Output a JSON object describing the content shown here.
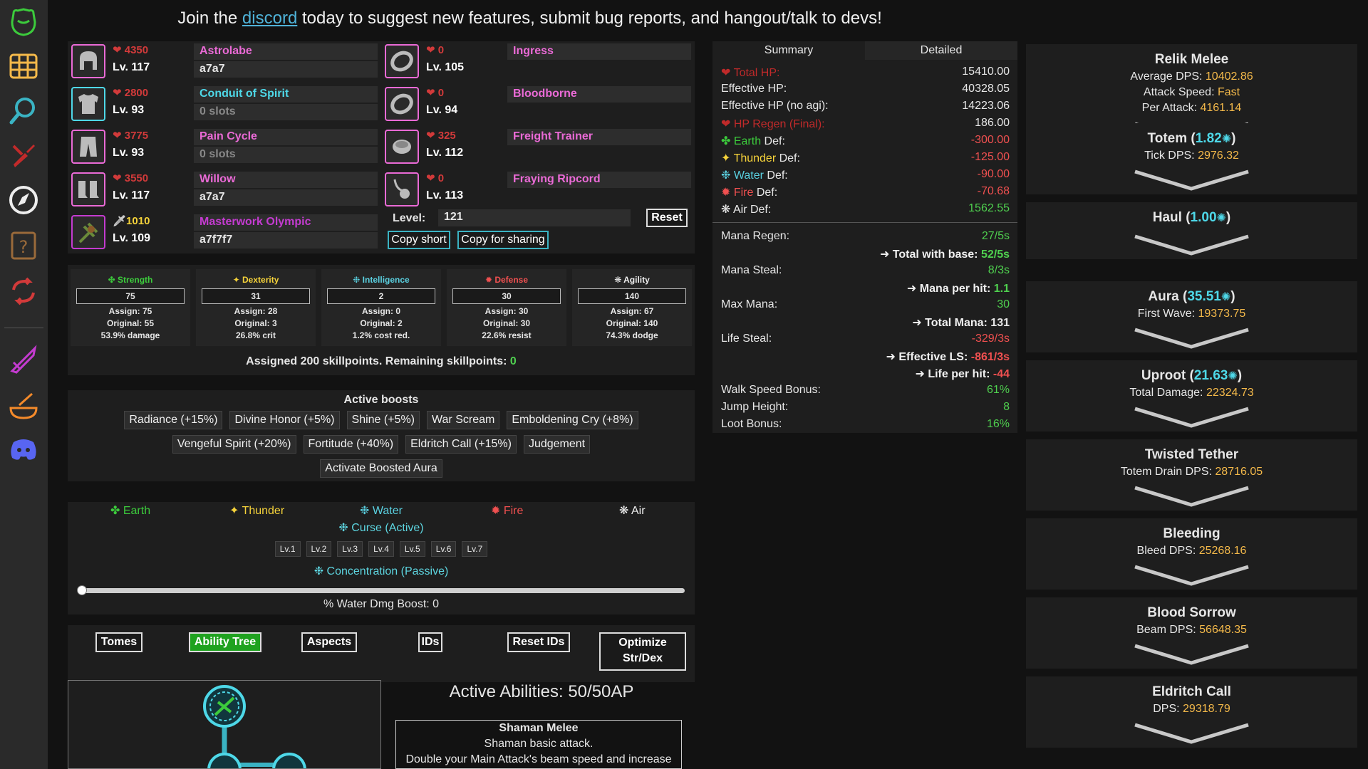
{
  "banner": {
    "before": "Join the ",
    "link": "discord",
    "after": " today to suggest new features, submit bug reports, and hangout/talk to devs!"
  },
  "sidebar": [
    "helmet-icon",
    "grid-icon",
    "search-icon",
    "wrench-icon",
    "compass-icon",
    "help-icon",
    "refresh-icon",
    "sword-icon",
    "cooking-icon",
    "discord-icon"
  ],
  "equipment": [
    {
      "hp": "❤ 4350",
      "level": "Lv. 117",
      "name": "Astrolabe",
      "sub": "a7a7",
      "sub_dim": false,
      "name_color": "#ea6ad6",
      "hp_color": "#d23a3a"
    },
    {
      "hp": "❤ 2800",
      "level": "Lv. 93",
      "name": "Conduit of Spirit",
      "sub": "0 slots",
      "sub_dim": true,
      "name_color": "#4ed8e8",
      "hp_color": "#d23a3a"
    },
    {
      "hp": "❤ 3775",
      "level": "Lv. 93",
      "name": "Pain Cycle",
      "sub": "0 slots",
      "sub_dim": true,
      "name_color": "#ea6ad6",
      "hp_color": "#d23a3a"
    },
    {
      "hp": "❤ 3550",
      "level": "Lv. 117",
      "name": "Willow",
      "sub": "a7a7",
      "sub_dim": false,
      "name_color": "#ea6ad6",
      "hp_color": "#d23a3a"
    },
    {
      "hp": "1010",
      "level": "Lv. 109",
      "name": "Masterwork Olympic",
      "sub": "a7f7f7",
      "sub_dim": false,
      "name_color": "#c43bd0",
      "hp_color": "#f4d23a"
    }
  ],
  "accessories": [
    {
      "hp": "❤ 0",
      "level": "Lv. 105",
      "name": "Ingress",
      "name_color": "#ea6ad6"
    },
    {
      "hp": "❤ 0",
      "level": "Lv. 94",
      "name": "Bloodborne",
      "name_color": "#ea6ad6"
    },
    {
      "hp": "❤ 325",
      "level": "Lv. 112",
      "name": "Freight Trainer",
      "name_color": "#ea6ad6"
    },
    {
      "hp": "❤ 0",
      "level": "Lv. 113",
      "name": "Fraying Ripcord",
      "name_color": "#ea6ad6"
    }
  ],
  "level": {
    "label": "Level:",
    "value": "121",
    "reset": "Reset",
    "copy_short": "Copy short",
    "copy_sharing": "Copy for sharing"
  },
  "skills": [
    {
      "name": "✤ Strength",
      "color": "#3ccb3c",
      "value": "75",
      "assign": "Assign: 75",
      "original": "Original: 55",
      "effect": "53.9% damage"
    },
    {
      "name": "✦ Dexterity",
      "color": "#f5d23a",
      "value": "31",
      "assign": "Assign: 28",
      "original": "Original: 3",
      "effect": "26.8% crit"
    },
    {
      "name": "❉ Intelligence",
      "color": "#5ad0e0",
      "value": "2",
      "assign": "Assign: 0",
      "original": "Original: 2",
      "effect": "1.2% cost red."
    },
    {
      "name": "✹ Defense",
      "color": "#f05050",
      "value": "30",
      "assign": "Assign: 30",
      "original": "Original: 30",
      "effect": "22.6% resist"
    },
    {
      "name": "❋ Agility",
      "color": "#eeeeee",
      "value": "140",
      "assign": "Assign: 67",
      "original": "Original: 140",
      "effect": "74.3% dodge"
    }
  ],
  "skill_summary": {
    "text": "Assigned 200 skillpoints. Remaining skillpoints: ",
    "remaining": "0"
  },
  "boosts": {
    "title": "Active boosts",
    "row1": [
      "Radiance (+15%)",
      "Divine Honor (+5%)",
      "Shine (+5%)",
      "War Scream",
      "Emboldening Cry (+8%)"
    ],
    "row2": [
      "Vengeful Spirit (+20%)",
      "Fortitude (+40%)",
      "Eldritch Call (+15%)",
      "Judgement"
    ],
    "row3": [
      "Activate Boosted Aura"
    ]
  },
  "elements": [
    {
      "label": "✤ Earth",
      "color": "#3ccb3c"
    },
    {
      "label": "✦ Thunder",
      "color": "#f5d23a"
    },
    {
      "label": "❉ Water",
      "color": "#5ad0e0"
    },
    {
      "label": "✹ Fire",
      "color": "#f05050"
    },
    {
      "label": "❋ Air",
      "color": "#eeeeee"
    }
  ],
  "abilities": {
    "curse": "❉ Curse (Active)",
    "levels": [
      "Lv.1",
      "Lv.2",
      "Lv.3",
      "Lv.4",
      "Lv.5",
      "Lv.6",
      "Lv.7"
    ],
    "concentration": "❉ Concentration (Passive)",
    "slider_label": "% Water Dmg Boost: 0",
    "slider_fraction": 0
  },
  "tabs": [
    "Tomes",
    "Ability Tree",
    "Aspects",
    "IDs",
    "Reset IDs",
    "Optimize Str/Dex"
  ],
  "active_abilities": {
    "title": "Active Abilities:  50/50AP",
    "name": "Shaman Melee",
    "line1": "Shaman basic attack.",
    "line2": "Double your Main Attack's beam speed and increase"
  },
  "stats": {
    "tabs": [
      "Summary",
      "Detailed"
    ],
    "rows1": [
      {
        "label": "❤ Total HP:",
        "value": "15410.00",
        "label_color": "#c02a2a",
        "value_color": "#e6e6e6"
      },
      {
        "label": "Effective HP:",
        "value": "40328.05",
        "label_color": "#e6e6e6",
        "value_color": "#e6e6e6"
      },
      {
        "label": "Effective HP (no agi):",
        "value": "14223.06",
        "label_color": "#e6e6e6",
        "value_color": "#e6e6e6"
      },
      {
        "label": "❤ HP Regen (Final):",
        "value": "186.00",
        "label_color": "#c02a2a",
        "value_color": "#e6e6e6"
      },
      {
        "label_prefix": "✤ Earth",
        "label_suffix": " Def:",
        "prefix_color": "#3ccb3c",
        "value": "-300.00",
        "value_color": "#f05050"
      },
      {
        "label_prefix": "✦ Thunder",
        "label_suffix": " Def:",
        "prefix_color": "#f5d23a",
        "value": "-125.00",
        "value_color": "#f05050"
      },
      {
        "label_prefix": "❉ Water",
        "label_suffix": " Def:",
        "prefix_color": "#5ad0e0",
        "value": "-90.00",
        "value_color": "#f05050"
      },
      {
        "label_prefix": "✹ Fire",
        "label_suffix": " Def:",
        "prefix_color": "#f05050",
        "value": "-70.68",
        "value_color": "#f05050"
      },
      {
        "label_prefix": "❋ Air",
        "label_suffix": " Def:",
        "prefix_color": "#eeeeee",
        "value": "1562.55",
        "value_color": "#4fd04f"
      }
    ],
    "rows2": [
      {
        "label": "Mana Regen:",
        "value": "27/5s",
        "value_color": "#4fd04f"
      },
      {
        "label": "",
        "value_prefix": "➜ Total with base: ",
        "value": "52/5s",
        "value_color": "#4fd04f",
        "bold": true
      },
      {
        "label": "Mana Steal:",
        "value": "8/3s",
        "value_color": "#4fd04f"
      },
      {
        "label": "",
        "value_prefix": "➜ Mana per hit: ",
        "value": "1.1",
        "value_color": "#4fd04f",
        "bold": true
      },
      {
        "label": "Max Mana:",
        "value": "30",
        "value_color": "#4fd04f"
      },
      {
        "label": "",
        "value_prefix": "➜ Total Mana: ",
        "value": "131",
        "value_color": "#e6e6e6",
        "bold": true
      },
      {
        "label": "Life Steal:",
        "value": "-329/3s",
        "value_color": "#f05050"
      },
      {
        "label": "",
        "value_prefix": "➜ Effective LS: ",
        "value": "-861/3s",
        "value_color": "#f05050",
        "bold": true
      },
      {
        "label": "",
        "value_prefix": "➜ Life per hit: ",
        "value": "-44",
        "value_color": "#f05050",
        "bold": true
      },
      {
        "label": "Walk Speed Bonus:",
        "value": "61%",
        "value_color": "#4fd04f"
      },
      {
        "label": "Jump Height:",
        "value": "8",
        "value_color": "#4fd04f"
      },
      {
        "label": "Loot Bonus:",
        "value": "16%",
        "value_color": "#4fd04f"
      }
    ]
  },
  "cards": [
    {
      "title": "Relik Melee",
      "title_extra": "",
      "lines": [
        {
          "label": "Average DPS: ",
          "value": "10402.86"
        },
        {
          "label": "Attack Speed: ",
          "value": "Fast"
        },
        {
          "label": "Per Attack: ",
          "value": "4161.14"
        }
      ]
    },
    {
      "title": "Totem (",
      "title_extra": "1.82",
      "title_end": ")",
      "lines": [
        {
          "label": "Tick DPS: ",
          "value": "2976.32"
        }
      ]
    },
    {
      "title": "Haul (",
      "title_extra": "1.00",
      "title_end": ")",
      "lines": []
    },
    {
      "title": "Aura (",
      "title_extra": "35.51",
      "title_end": ")",
      "lines": [
        {
          "label": "First Wave: ",
          "value": "19373.75"
        }
      ]
    },
    {
      "title": "Uproot (",
      "title_extra": "21.63",
      "title_end": ")",
      "lines": [
        {
          "label": "Total Damage: ",
          "value": "22324.73"
        }
      ]
    },
    {
      "title": "Twisted Tether",
      "title_extra": "",
      "lines": [
        {
          "label": "Totem Drain DPS: ",
          "value": "28716.05"
        }
      ]
    },
    {
      "title": "Bleeding",
      "title_extra": "",
      "lines": [
        {
          "label": "Bleed DPS: ",
          "value": "25268.16"
        }
      ]
    },
    {
      "title": "Blood Sorrow",
      "title_extra": "",
      "lines": [
        {
          "label": "Beam DPS: ",
          "value": "56648.35"
        }
      ]
    },
    {
      "title": "Eldritch Call",
      "title_extra": "",
      "lines": [
        {
          "label": "DPS: ",
          "value": "29318.79"
        }
      ]
    }
  ]
}
